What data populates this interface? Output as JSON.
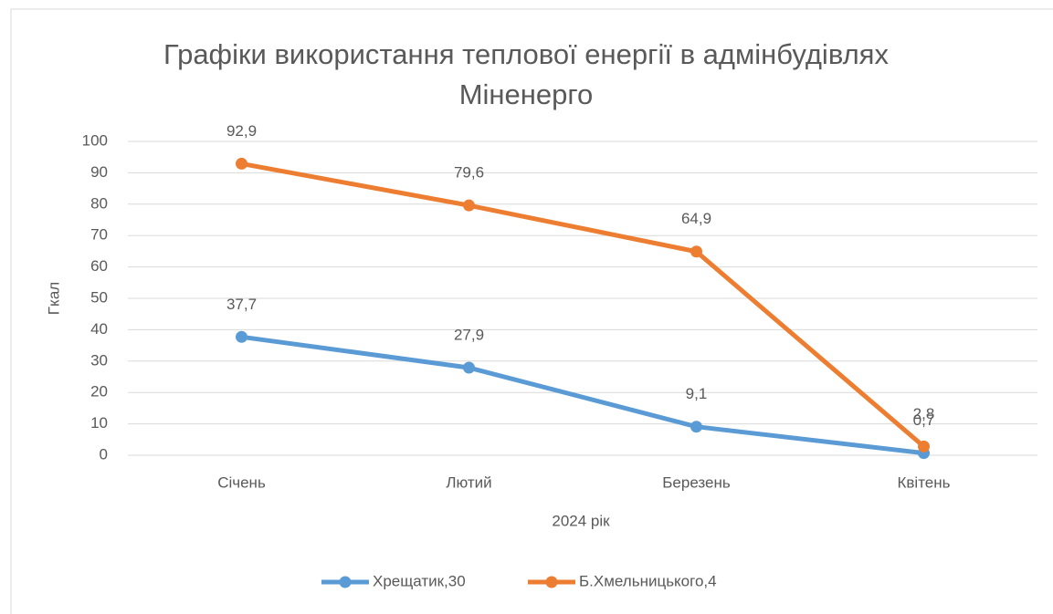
{
  "chart_data": {
    "type": "line",
    "title": "Графіки використання теплової енергії в адмінбудівлях Міненерго",
    "x_label": "2024 рік",
    "y_label": "Гкал",
    "categories": [
      "Січень",
      "Лютий",
      "Березень",
      "Квітень"
    ],
    "series": [
      {
        "name": "Хрещатик,30",
        "color": "#5b9bd5",
        "values": [
          37.7,
          27.9,
          9.1,
          0.7
        ],
        "value_labels": [
          "37,7",
          "27,9",
          "9,1",
          "0,7"
        ]
      },
      {
        "name": "Б.Хмельницького,4",
        "color": "#ed7d31",
        "values": [
          92.9,
          79.6,
          64.9,
          2.8
        ],
        "value_labels": [
          "92,9",
          "79,6",
          "64,9",
          "2,8"
        ]
      }
    ],
    "ylim": [
      0,
      100
    ],
    "yticks": [
      0,
      10,
      20,
      30,
      40,
      50,
      60,
      70,
      80,
      90,
      100
    ],
    "grid": true,
    "legend": "bottom"
  }
}
